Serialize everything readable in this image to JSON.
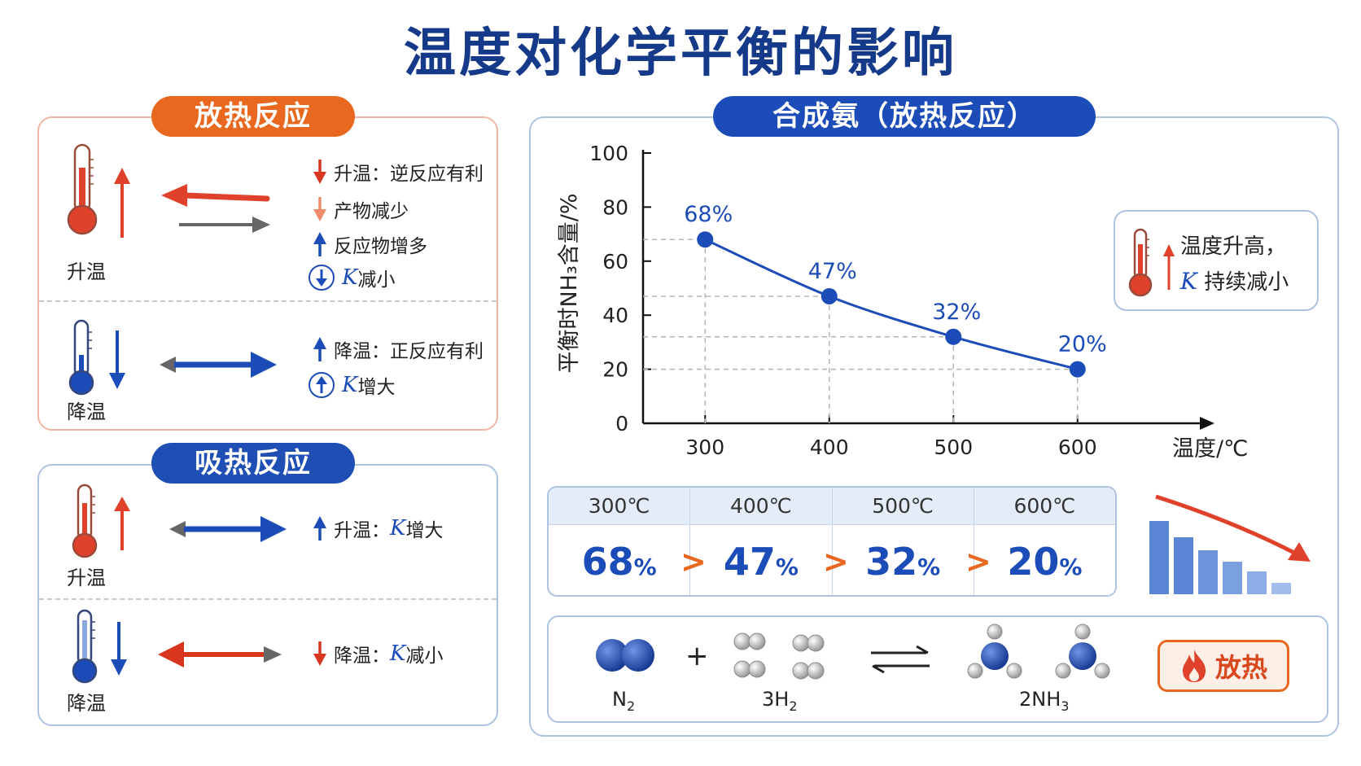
{
  "title": "温度对化学平衡的影响",
  "exothermic": {
    "header": "放热反应",
    "rise": {
      "label": "升温",
      "notes": [
        "升温：逆反应有利",
        "产物减少",
        "反应物增多"
      ],
      "k_note": {
        "symbol": "K",
        "text": "减小"
      }
    },
    "drop": {
      "label": "降温",
      "notes": [
        "降温：正反应有利"
      ],
      "k_note": {
        "symbol": "K",
        "text": "增大"
      }
    }
  },
  "endothermic": {
    "header": "吸热反应",
    "rise": {
      "label": "升温",
      "prefix": "升温：",
      "symbol": "K",
      "text": "增大"
    },
    "drop": {
      "label": "降温",
      "prefix": "降温：",
      "symbol": "K",
      "text": "减小"
    }
  },
  "chart_panel": {
    "header": "合成氨（放热反应）",
    "callout": {
      "line1": "温度升高，",
      "symbol": "K",
      "line2": "持续减小"
    }
  },
  "chart_data": {
    "type": "line",
    "x": [
      300,
      400,
      500,
      600
    ],
    "y": [
      68,
      47,
      32,
      20
    ],
    "point_labels": [
      "68%",
      "47%",
      "32%",
      "20%"
    ],
    "xlabel": "温度/℃",
    "ylabel": "平衡时NH₃含量/%",
    "ylim": [
      0,
      100
    ],
    "yticks": [
      0,
      20,
      40,
      60,
      80,
      100
    ],
    "xticks": [
      300,
      400,
      500,
      600
    ],
    "color": "#1c4cb8"
  },
  "table": {
    "headers": [
      "300℃",
      "400℃",
      "500℃",
      "600℃"
    ],
    "values": [
      "68",
      "47",
      "32",
      "20"
    ],
    "unit": "%",
    "separator": ">"
  },
  "reaction": {
    "plus": "+",
    "n2": {
      "base": "N",
      "sub": "2"
    },
    "h2": {
      "base": "3H",
      "sub": "2"
    },
    "nh3": {
      "base": "2NH",
      "sub": "3"
    },
    "badge": "放热"
  },
  "colors": {
    "hot": "#e0412a",
    "cold": "#1c4cb8",
    "accent": "#e9681f",
    "title": "#163a8a"
  }
}
